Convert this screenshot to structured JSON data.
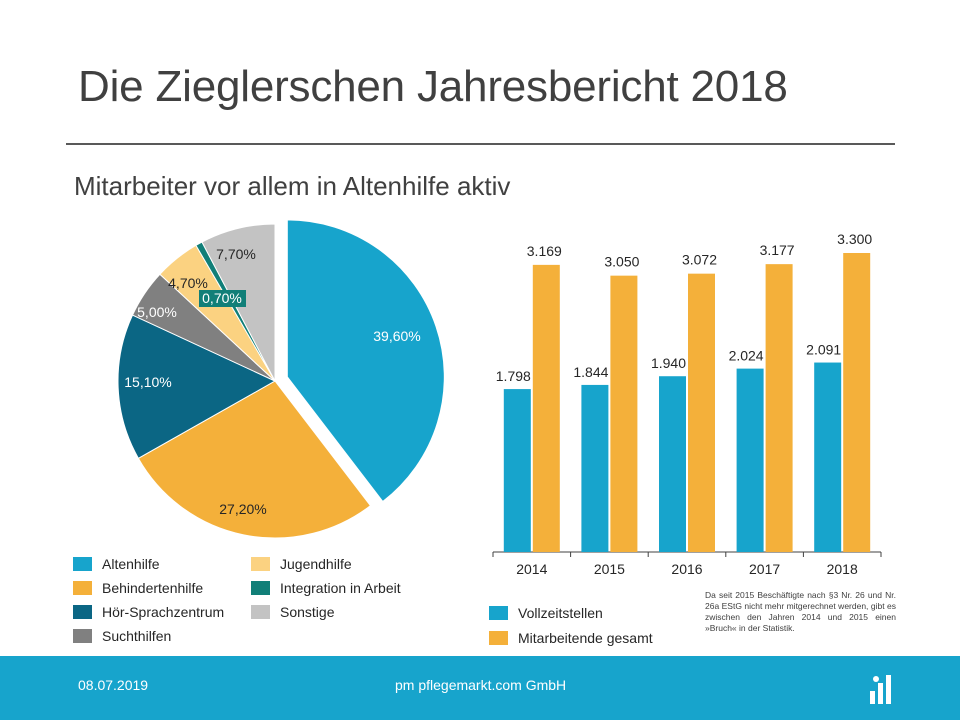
{
  "header": {
    "title": "Die Zieglerschen Jahresbericht 2018",
    "subtitle": "Mitarbeiter vor allem in Altenhilfe aktiv"
  },
  "footer": {
    "date": "08.07.2019",
    "company": "pm pflegemarkt.com GmbH",
    "logo_icon": "pflegemarkt-logo-icon"
  },
  "footnote": "Da seit 2015 Beschäftigte nach §3 Nr. 26 und Nr. 26a EStG nicht mehr mitgerechnet werden, gibt es zwischen den Jahren 2014 und 2015 einen »Bruch« in der Statistik.",
  "pie_legend": [
    {
      "label": "Altenhilfe",
      "color": "#17a4cc"
    },
    {
      "label": "Behindertenhilfe",
      "color": "#f4b03a"
    },
    {
      "label": "Hör-Sprachzentrum",
      "color": "#0b6684"
    },
    {
      "label": "Suchthilfen",
      "color": "#808080"
    },
    {
      "label": "Jugendhilfe",
      "color": "#fbd281"
    },
    {
      "label": "Integration  in Arbeit",
      "color": "#117f78"
    },
    {
      "label": "Sonstige",
      "color": "#c3c3c3"
    }
  ],
  "bar_legend": [
    {
      "label": "Vollzeitstellen",
      "color": "#17a4cc"
    },
    {
      "label": "Mitarbeitende gesamt",
      "color": "#f4b03a"
    }
  ],
  "chart_data": [
    {
      "type": "pie",
      "slices": [
        {
          "label": "Altenhilfe",
          "value": 39.6,
          "display": "39,60%",
          "color": "#17a4cc",
          "exploded": true
        },
        {
          "label": "Behindertenhilfe",
          "value": 27.2,
          "display": "27,20%",
          "color": "#f4b03a"
        },
        {
          "label": "Hör-Sprachzentrum",
          "value": 15.1,
          "display": "15,10%",
          "color": "#0b6684"
        },
        {
          "label": "Suchthilfen",
          "value": 5.0,
          "display": "5,00%",
          "color": "#808080"
        },
        {
          "label": "Jugendhilfe",
          "value": 4.7,
          "display": "4,70%",
          "color": "#fbd281"
        },
        {
          "label": "Integration  in Arbeit",
          "value": 0.7,
          "display": "0,70%",
          "color": "#117f78"
        },
        {
          "label": "Sonstige",
          "value": 7.7,
          "display": "7,70%",
          "color": "#c3c3c3"
        }
      ]
    },
    {
      "type": "bar",
      "categories": [
        "2014",
        "2015",
        "2016",
        "2017",
        "2018"
      ],
      "series": [
        {
          "name": "Vollzeitstellen",
          "values": [
            1798,
            1844,
            1940,
            2024,
            2091
          ],
          "labels": [
            "1.798",
            "1.844",
            "1.940",
            "2.024",
            "2.091"
          ],
          "color": "#17a4cc"
        },
        {
          "name": "Mitarbeitende gesamt",
          "values": [
            3169,
            3050,
            3072,
            3177,
            3300
          ],
          "labels": [
            "3.169",
            "3.050",
            "3.072",
            "3.177",
            "3.300"
          ],
          "color": "#f4b03a"
        }
      ],
      "ylim": [
        0,
        3500
      ],
      "grid": false
    }
  ]
}
